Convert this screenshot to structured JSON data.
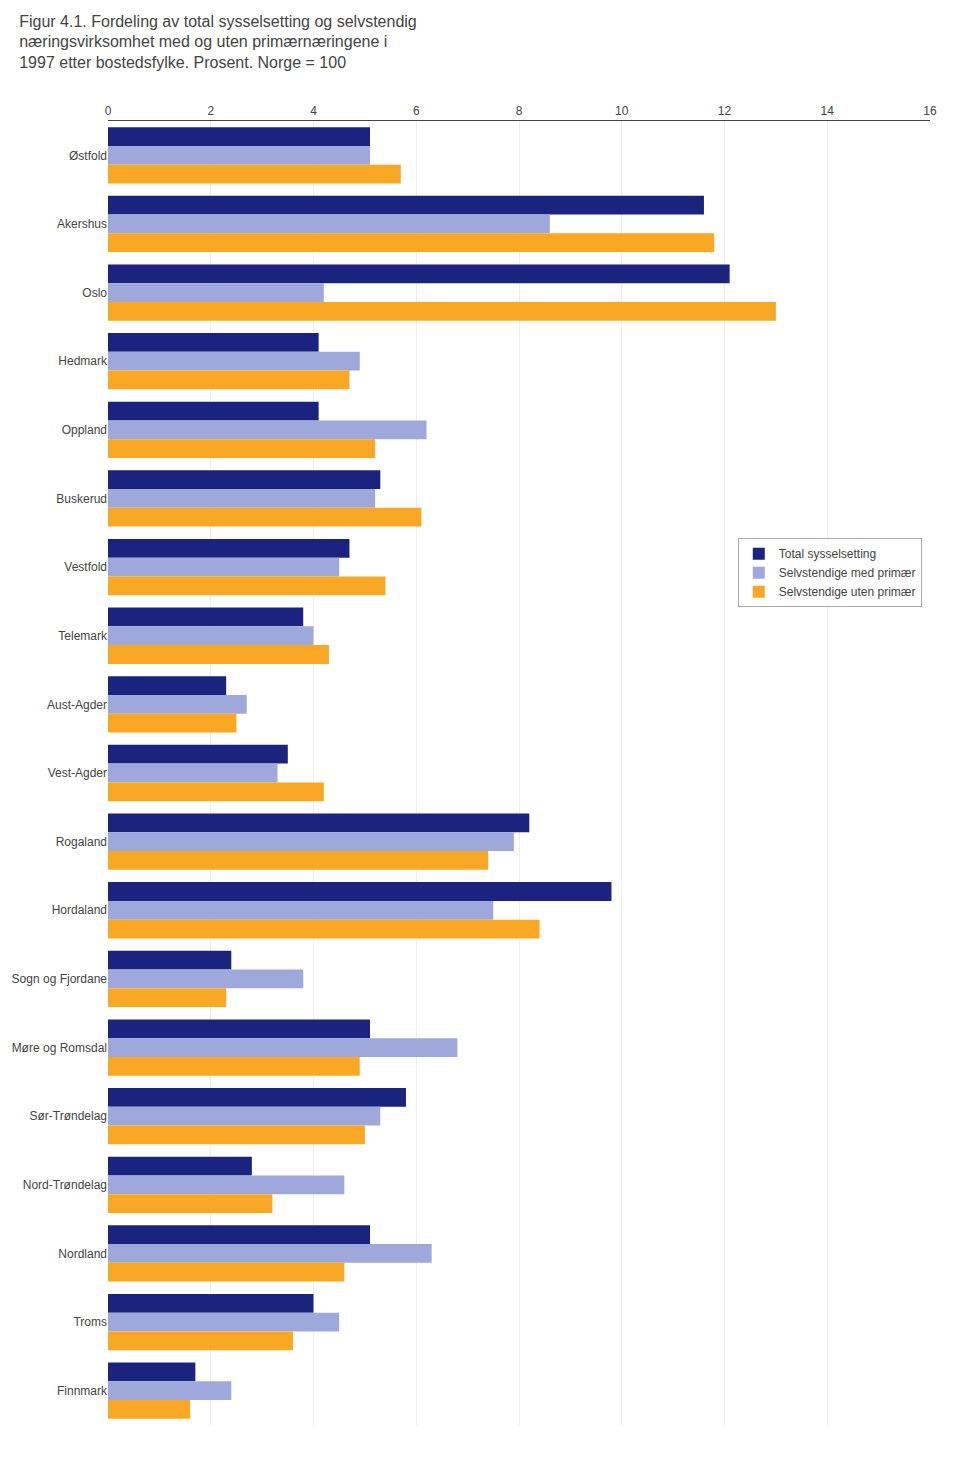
{
  "chart_data": {
    "type": "bar",
    "orientation": "horizontal",
    "title": "Figur 4.1. Fordeling av total sysselsetting og selvstendig\nnæringsvirksomhet med og uten primærnæringene i\n1997 etter bostedsfylke. Prosent. Norge = 100",
    "categories": [
      "Østfold",
      "Akershus",
      "Oslo",
      "Hedmark",
      "Oppland",
      "Buskerud",
      "Vestfold",
      "Telemark",
      "Aust-Agder",
      "Vest-Agder",
      "Rogaland",
      "Hordaland",
      "Sogn og Fjordane",
      "Møre og Romsdal",
      "Sør-Trøndelag",
      "Nord-Trøndelag",
      "Nordland",
      "Troms",
      "Finnmark"
    ],
    "series": [
      {
        "name": "Total sysselsetting",
        "color": "#1a237e",
        "values": [
          5.1,
          11.6,
          12.1,
          4.1,
          4.1,
          5.3,
          4.7,
          3.8,
          2.3,
          3.5,
          8.2,
          9.8,
          2.4,
          5.1,
          5.8,
          2.8,
          5.1,
          4.0,
          1.7
        ]
      },
      {
        "name": "Selvstendige med primær",
        "color": "#9fa8da",
        "values": [
          5.1,
          8.6,
          4.2,
          4.9,
          6.2,
          5.2,
          4.5,
          4.0,
          2.7,
          3.3,
          7.9,
          7.5,
          3.8,
          6.8,
          5.3,
          4.6,
          6.3,
          4.5,
          2.4
        ]
      },
      {
        "name": "Selvstendige uten primær",
        "color": "#f9a825",
        "values": [
          5.7,
          11.8,
          13.0,
          4.7,
          5.2,
          6.1,
          5.4,
          4.3,
          2.5,
          4.2,
          7.4,
          8.4,
          2.3,
          4.9,
          5.0,
          3.2,
          4.6,
          3.6,
          1.6
        ]
      }
    ],
    "xlim": [
      0,
      16
    ],
    "xticks": [
      0,
      2,
      4,
      6,
      8,
      10,
      12,
      14,
      16
    ],
    "grid": true,
    "legend": "upper right"
  }
}
